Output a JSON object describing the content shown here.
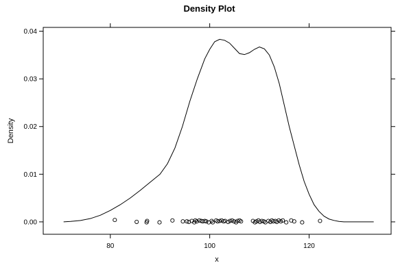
{
  "chart_data": {
    "type": "line",
    "title": "Density Plot",
    "xlabel": "x",
    "ylabel": "Density",
    "xlim": [
      66.5,
      136.5
    ],
    "ylim": [
      -0.0026,
      0.0408
    ],
    "x_ticks": [
      80,
      100,
      120
    ],
    "x_tick_labels": [
      "80",
      "100",
      "120"
    ],
    "y_ticks": [
      0.0,
      0.01,
      0.02,
      0.03,
      0.04
    ],
    "y_tick_labels": [
      "0.00",
      "0.01",
      "0.02",
      "0.03",
      "0.04"
    ],
    "grid": false,
    "series": [
      {
        "x": [
          70.6,
          72,
          74,
          76,
          78,
          80,
          82,
          84,
          86,
          88,
          90,
          91.5,
          93,
          94.5,
          96,
          97.5,
          99,
          100,
          101,
          102,
          103,
          104,
          105,
          106,
          107,
          108,
          109,
          110,
          111,
          112,
          113,
          114,
          115,
          116,
          117,
          118,
          119,
          120,
          121,
          122,
          123,
          124,
          125,
          126,
          127,
          128,
          130,
          133
        ],
        "y": [
          0.0,
          0.0001,
          0.0003,
          0.0007,
          0.0014,
          0.0024,
          0.0036,
          0.005,
          0.0066,
          0.0083,
          0.01,
          0.0122,
          0.0155,
          0.02,
          0.0253,
          0.03,
          0.0342,
          0.0362,
          0.0378,
          0.0383,
          0.0381,
          0.0375,
          0.0364,
          0.0353,
          0.0351,
          0.0355,
          0.0362,
          0.0367,
          0.0363,
          0.035,
          0.0325,
          0.029,
          0.0245,
          0.02,
          0.016,
          0.012,
          0.0085,
          0.0058,
          0.0036,
          0.0022,
          0.0012,
          0.0006,
          0.0003,
          0.0001,
          0.0,
          0.0,
          0.0,
          0.0
        ]
      }
    ],
    "rug_points": {
      "x": [
        80.9,
        85.3,
        87.3,
        87.4,
        89.9,
        92.5,
        94.6,
        95.4,
        95.8,
        96.4,
        96.9,
        97.1,
        97.4,
        97.9,
        98.3,
        98.6,
        99.0,
        99.3,
        99.8,
        100.4,
        100.6,
        101.3,
        101.6,
        102.0,
        102.4,
        102.8,
        103.1,
        103.7,
        104.1,
        104.5,
        104.9,
        105.3,
        105.6,
        106.0,
        106.3,
        108.7,
        109.1,
        109.4,
        109.8,
        110.1,
        110.5,
        110.9,
        111.2,
        111.8,
        112.2,
        112.5,
        112.8,
        113.2,
        113.5,
        113.9,
        114.3,
        114.7,
        115.4,
        116.4,
        117.0,
        118.6,
        122.2
      ],
      "y": [
        0.0004,
        0.0,
        -0.0001,
        0.0002,
        -0.0001,
        0.0003,
        0.0001,
        0.0001,
        0.0,
        0.0002,
        -0.0001,
        0.0003,
        0.0001,
        0.0003,
        0.0002,
        0.0001,
        0.0002,
        0.0001,
        -0.0001,
        0.0002,
        -0.0001,
        0.0003,
        0.0001,
        0.0002,
        0.0003,
        0.0001,
        0.0002,
        0.0,
        0.0002,
        0.0003,
        0.0001,
        -0.0001,
        0.0002,
        0.0003,
        0.0001,
        0.0002,
        -0.0001,
        0.0001,
        0.0003,
        0.0,
        0.0002,
        0.0001,
        -0.0001,
        0.0002,
        0.0,
        0.0003,
        0.0001,
        0.0002,
        0.0,
        0.0003,
        0.0001,
        0.0003,
        -0.0001,
        0.0003,
        0.0001,
        -0.0001,
        0.0002
      ]
    }
  }
}
